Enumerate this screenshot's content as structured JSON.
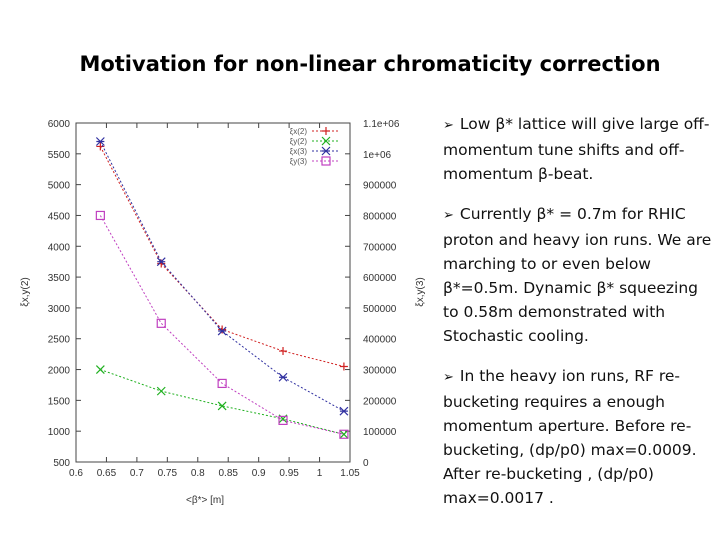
{
  "title": "Motivation for non-linear chromaticity correction",
  "bullets": [
    {
      "marker": "➢",
      "text": "Low β* lattice will give large off-momentum tune shifts and off-momentum β-beat."
    },
    {
      "marker": "➢",
      "text": "Currently β* = 0.7m for RHIC proton and heavy ion runs.  We are marching to or even below β*=0.5m.  Dynamic β* squeezing to 0.58m demonstrated with Stochastic cooling."
    },
    {
      "marker": "➢",
      "text": "In the heavy ion runs, RF re-bucketing requires a enough momentum aperture.  Before re-bucketing, (dp/p0) max=0.0009.  After re-bucketing , (dp/p0) max=0.0017 ."
    }
  ],
  "chart_data": {
    "type": "line",
    "x": [
      0.64,
      0.74,
      0.84,
      0.94,
      1.04
    ],
    "xlim": [
      0.6,
      1.05
    ],
    "xticks": [
      "0.6",
      "0.65",
      "0.7",
      "0.75",
      "0.8",
      "0.85",
      "0.9",
      "0.95",
      "1",
      "1.05"
    ],
    "xlabel": "<β*> [m]",
    "ylabel_left": "ξx,y(2)",
    "ylim_left": [
      500,
      6000
    ],
    "yticks_left": [
      "500",
      "1000",
      "1500",
      "2000",
      "2500",
      "3000",
      "3500",
      "4000",
      "4500",
      "5000",
      "5500",
      "6000"
    ],
    "ylabel_right": "ξx,y(3)",
    "ylim_right": [
      0,
      1100000
    ],
    "yticks_right": [
      "0",
      "100000",
      "200000",
      "300000",
      "400000",
      "500000",
      "600000",
      "700000",
      "800000",
      "900000",
      "1e+06",
      "1.1e+06"
    ],
    "series": [
      {
        "name": "ξx(2)",
        "axis": "left",
        "values": [
          5620,
          3720,
          2650,
          2300,
          2050
        ],
        "color": "#d02020",
        "marker": "plus"
      },
      {
        "name": "ξy(2)",
        "axis": "left",
        "values": [
          2000,
          1650,
          1410,
          1200,
          950
        ],
        "color": "#20b020",
        "marker": "x"
      },
      {
        "name": "ξx(3)",
        "axis": "right",
        "values": [
          1040000,
          650000,
          425000,
          275000,
          165000
        ],
        "color": "#3030a0",
        "marker": "star"
      },
      {
        "name": "ξy(3)",
        "axis": "right",
        "values": [
          800000,
          450000,
          255000,
          135000,
          90000
        ],
        "color": "#c040c0",
        "marker": "square"
      }
    ]
  }
}
